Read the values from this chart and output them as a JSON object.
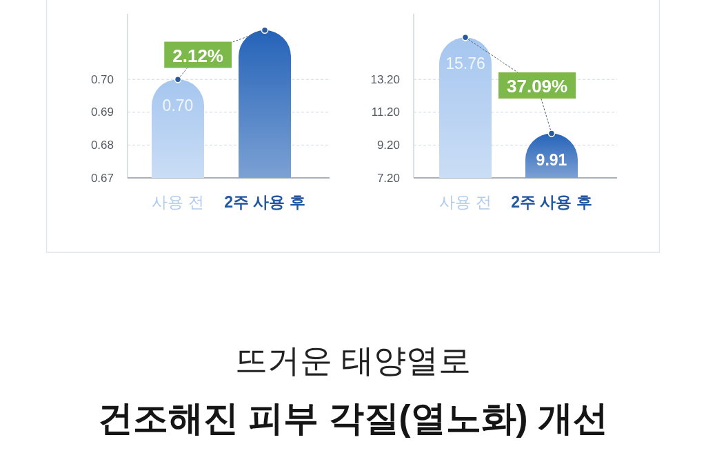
{
  "chart_data": [
    {
      "type": "bar",
      "categories": [
        "사용 전",
        "2주 사용 후"
      ],
      "values": [
        0.7,
        0.715
      ],
      "colors": [
        "#a6c6ef",
        "#2563b8"
      ],
      "value_labels": [
        "0.70",
        null
      ],
      "ylim": [
        0.67,
        0.72
      ],
      "yticks": [
        0.67,
        0.68,
        0.69,
        {
          "value": 0.7,
          "label": "0.70"
        }
      ],
      "grid": "y",
      "annotations": [
        "2.12%"
      ]
    },
    {
      "type": "bar",
      "categories": [
        "사용 전",
        "2주 사용 후"
      ],
      "values": [
        15.76,
        9.91
      ],
      "colors": [
        "#a6c6ef",
        "#2563b8"
      ],
      "value_labels": [
        "15.76",
        "9.91"
      ],
      "ylim": [
        7.2,
        17.2
      ],
      "yticks": [
        {
          "value": 7.2,
          "label": "7.20"
        },
        {
          "value": 9.2,
          "label": "9.20"
        },
        {
          "value": 11.2,
          "label": "11.20"
        },
        {
          "value": 13.2,
          "label": "13.20"
        }
      ],
      "grid": "y",
      "annotations": [
        "37.09%"
      ]
    },
    {
      "type": "other",
      "subtitle": "뜨거운 태양열로",
      "title": "건조해진 피부 각질(열노화) 개선"
    }
  ]
}
